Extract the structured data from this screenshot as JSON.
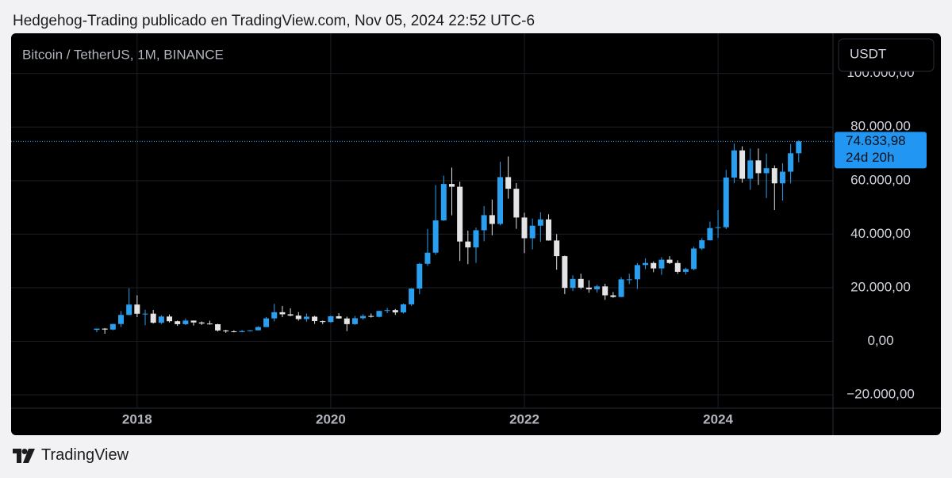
{
  "header": "Hedgehog-Trading publicado en TradingView.com, Nov 05, 2024 22:52 UTC-6",
  "footer": "TradingView",
  "chart_data": {
    "type": "candlestick",
    "title": "Bitcoin / TetherUS, 1M, BINANCE",
    "currency_button": "USDT",
    "last_price": {
      "value": 74633.98,
      "label": "74.633,98"
    },
    "countdown": "24d 20h",
    "up_color": "#2a9ff0",
    "down_color": "#e4e4e6",
    "grid": true,
    "ylim": [
      -25000,
      115000
    ],
    "yticks": [
      {
        "value": -20000,
        "label": "−20.000,00"
      },
      {
        "value": 0,
        "label": "0,00"
      },
      {
        "value": 20000,
        "label": "20.000,00"
      },
      {
        "value": 40000,
        "label": "40.000,00"
      },
      {
        "value": 60000,
        "label": "60.000,00"
      },
      {
        "value": 80000,
        "label": "80.000,00"
      },
      {
        "value": 100000,
        "label": "100.000,00"
      }
    ],
    "categories": [
      null,
      null,
      null,
      null,
      null,
      "2018",
      null,
      null,
      null,
      null,
      null,
      null,
      null,
      null,
      null,
      null,
      null,
      null,
      null,
      null,
      null,
      null,
      null,
      null,
      null,
      null,
      null,
      null,
      null,
      "2020",
      null,
      null,
      null,
      null,
      null,
      null,
      null,
      null,
      null,
      null,
      null,
      null,
      null,
      null,
      null,
      null,
      null,
      null,
      null,
      null,
      null,
      null,
      null,
      "2022",
      null,
      null,
      null,
      null,
      null,
      null,
      null,
      null,
      null,
      null,
      null,
      null,
      null,
      null,
      null,
      null,
      null,
      null,
      null,
      null,
      null,
      null,
      null,
      "2024",
      null,
      null,
      null,
      null,
      null,
      null,
      null,
      null,
      null,
      null
    ],
    "open": [
      4261,
      4724,
      4378,
      6463,
      9838,
      13716,
      10285,
      10326,
      6923,
      9246,
      7494,
      6391,
      7730,
      7025,
      6626,
      6371,
      4041,
      3702,
      3434,
      3813,
      4103,
      5320,
      8555,
      10854,
      10085,
      9590,
      8293,
      9199,
      7546,
      7195,
      9352,
      8523,
      6410,
      8620,
      9448,
      9138,
      11335,
      11650,
      10776,
      13791,
      19695,
      28923,
      33092,
      45134,
      58740,
      57697,
      37253,
      35045,
      41461,
      47100,
      43820,
      61300,
      56950,
      46217,
      38467,
      43160,
      45510,
      37630,
      31801,
      19942,
      23296,
      20050,
      19423,
      20490,
      17165,
      16542,
      23125,
      23141,
      28465,
      29233,
      27210,
      30471,
      29232,
      25941,
      26963,
      34640,
      37724,
      42283,
      42580,
      61130,
      71280,
      60672,
      67540,
      62772,
      64628,
      58974,
      63327,
      70215
    ],
    "high": [
      4745,
      4939,
      6470,
      11300,
      19798,
      17176,
      11786,
      11710,
      9759,
      10020,
      7760,
      8488,
      7750,
      7410,
      7680,
      6540,
      4313,
      4140,
      4198,
      4140,
      5600,
      9074,
      13970,
      13200,
      12325,
      10905,
      10370,
      9505,
      7750,
      9578,
      10500,
      9188,
      9460,
      10067,
      10380,
      11444,
      12468,
      12067,
      14100,
      19863,
      29300,
      41950,
      58352,
      61844,
      64854,
      59592,
      41330,
      42448,
      50500,
      52920,
      67000,
      69000,
      59053,
      47990,
      45821,
      48190,
      47444,
      40023,
      31986,
      24668,
      25212,
      22799,
      21085,
      21480,
      18388,
      23960,
      25250,
      29184,
      31000,
      29820,
      31431,
      31804,
      30244,
      27483,
      35280,
      38450,
      44700,
      48970,
      64000,
      73777,
      72797,
      71980,
      71997,
      70080,
      65660,
      66498,
      73620,
      75000
    ],
    "low": [
      3400,
      2817,
      4110,
      5325,
      9722,
      9035,
      6000,
      6600,
      6430,
      7032,
      5750,
      6070,
      5880,
      6100,
      6205,
      3652,
      3157,
      3349,
      3400,
      3690,
      4067,
      5316,
      7444,
      9010,
      9320,
      7710,
      7300,
      6515,
      6435,
      6871,
      8445,
      3782,
      6150,
      8105,
      8833,
      8893,
      10518,
      9825,
      10375,
      13195,
      17572,
      28130,
      32296,
      44950,
      47044,
      30000,
      28805,
      29278,
      37332,
      39600,
      43283,
      53256,
      42000,
      32917,
      34322,
      37155,
      37578,
      26700,
      17622,
      18782,
      19520,
      18125,
      18190,
      15476,
      16256,
      16500,
      21351,
      19549,
      26942,
      25811,
      24800,
      28862,
      25166,
      24901,
      26538,
      34097,
      37630,
      38555,
      41885,
      59005,
      59191,
      56552,
      58402,
      53485,
      49000,
      52550,
      58946,
      66835
    ],
    "close": [
      4724,
      4378,
      6463,
      9838,
      13716,
      10285,
      10326,
      6923,
      9246,
      7494,
      6391,
      7730,
      7025,
      6626,
      6371,
      4041,
      3702,
      3434,
      3813,
      4103,
      5320,
      8555,
      10854,
      10085,
      9590,
      8293,
      9199,
      7546,
      7195,
      9352,
      8523,
      6410,
      8620,
      9448,
      9138,
      11335,
      11650,
      10776,
      13791,
      19695,
      28923,
      33092,
      45135,
      58740,
      57694,
      37253,
      35045,
      41461,
      47100,
      43824,
      61300,
      56950,
      46217,
      38467,
      43160,
      45510,
      37630,
      31801,
      19942,
      23293,
      20050,
      19423,
      20490,
      17164,
      16542,
      23125,
      23142,
      28465,
      29233,
      27210,
      30472,
      29232,
      25941,
      26962,
      34639,
      37724,
      42283,
      42580,
      61130,
      71280,
      60672,
      67540,
      62772,
      64628,
      58974,
      63327,
      70215,
      74633.98
    ]
  }
}
